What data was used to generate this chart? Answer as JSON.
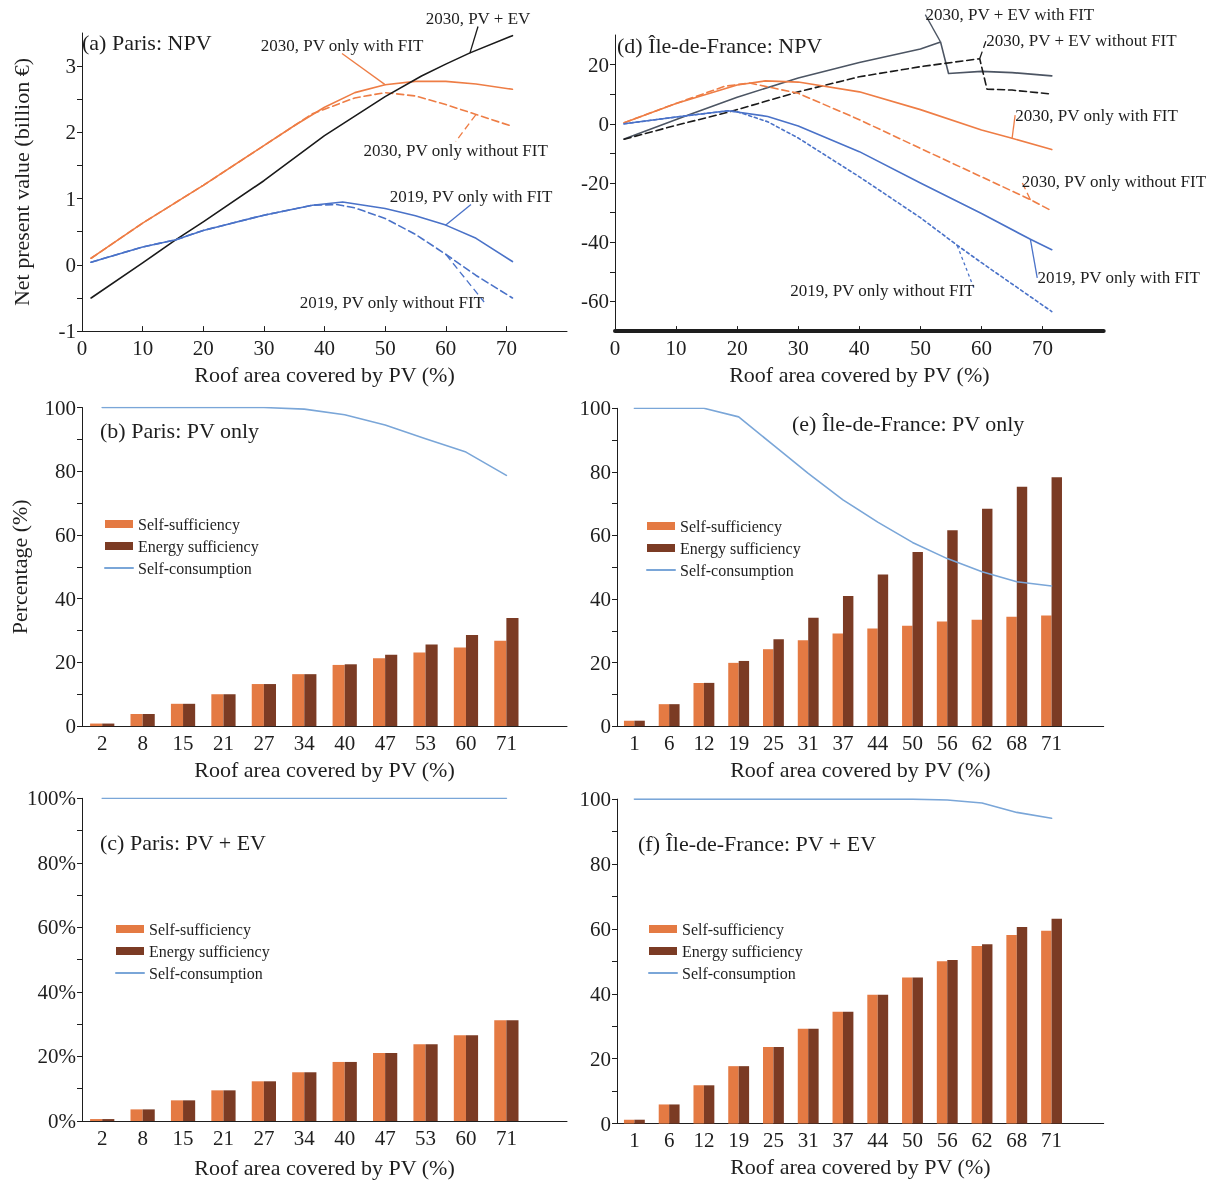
{
  "chart_data": [
    {
      "type": "line",
      "title": "(a) Paris: NPV",
      "xlabel": "Roof area covered by PV (%)",
      "ylabel": "Net present value (billion €)",
      "xlim": [
        0,
        80
      ],
      "xticks": [
        0,
        10,
        20,
        30,
        40,
        50,
        60,
        70
      ],
      "ylim": [
        -1,
        3.5
      ],
      "yticks": [
        -1,
        {
          "value": -0.5,
          "label": null
        },
        0,
        {
          "value": 0.5,
          "label": null
        },
        1,
        {
          "value": 1.5,
          "label": null
        },
        2,
        {
          "value": 2.5,
          "label": null
        },
        3
      ],
      "series": [
        {
          "name": "2030, PV only with FIT",
          "color": "#ee7d45",
          "x": [
            1.5,
            10,
            20,
            30,
            35,
            40,
            45,
            50,
            55,
            60,
            65,
            71
          ],
          "values": [
            0.1,
            0.63,
            1.2,
            1.8,
            2.1,
            2.38,
            2.6,
            2.72,
            2.77,
            2.77,
            2.73,
            2.65
          ]
        },
        {
          "name": "2030, PV only without FIT",
          "color": "#ee7d45",
          "line_style": "dashed",
          "x": [
            1.5,
            10,
            20,
            30,
            35,
            38,
            40,
            45,
            50,
            55,
            60,
            65,
            71
          ],
          "values": [
            0.1,
            0.63,
            1.2,
            1.8,
            2.1,
            2.28,
            2.35,
            2.52,
            2.6,
            2.55,
            2.42,
            2.27,
            2.09
          ]
        },
        {
          "name": "2030, PV + EV",
          "color": "#1a1a1a",
          "x": [
            1.5,
            10,
            15.5,
            20,
            30,
            40,
            50,
            56,
            60,
            64,
            71
          ],
          "values": [
            -0.5,
            0.03,
            0.38,
            0.65,
            1.27,
            1.95,
            2.54,
            2.85,
            3.03,
            3.2,
            3.46
          ]
        },
        {
          "name": "2019, PV only with FIT",
          "color": "#4a72c8",
          "x": [
            1.5,
            10,
            15.5,
            20,
            30,
            38,
            43,
            50,
            55,
            60,
            65,
            71
          ],
          "values": [
            0.04,
            0.27,
            0.38,
            0.52,
            0.75,
            0.9,
            0.95,
            0.85,
            0.74,
            0.6,
            0.4,
            0.05
          ]
        },
        {
          "name": "2019, PV only without FIT",
          "color": "#4a72c8",
          "line_style": "dashed",
          "x": [
            1.5,
            10,
            15.5,
            20,
            30,
            38,
            42,
            45,
            50,
            55,
            60,
            65,
            71
          ],
          "values": [
            0.04,
            0.27,
            0.38,
            0.52,
            0.75,
            0.9,
            0.91,
            0.86,
            0.7,
            0.46,
            0.16,
            -0.16,
            -0.5
          ]
        }
      ]
    },
    {
      "type": "line",
      "title": "(d) Île-de-France: NPV",
      "xlabel": "Roof area covered by PV (%)",
      "xlim": [
        0,
        80
      ],
      "xticks": [
        0,
        10,
        20,
        30,
        40,
        50,
        60,
        70
      ],
      "ylim": [
        -70,
        30
      ],
      "yticks": [
        -60,
        {
          "value": -50,
          "label": null
        },
        -40,
        {
          "value": -30,
          "label": null
        },
        -20,
        {
          "value": -10,
          "label": null
        },
        0,
        {
          "value": 10,
          "label": null
        },
        20
      ],
      "series": [
        {
          "name": "2030, PV + EV with FIT",
          "color": "#4c5563",
          "x": [
            1.5,
            12,
            20,
            30,
            40,
            50,
            53.3,
            54.6,
            60,
            65,
            71.5
          ],
          "values": [
            -5.1,
            3,
            9,
            15.5,
            20.7,
            25.3,
            27.6,
            17,
            17.7,
            17.3,
            16.2
          ]
        },
        {
          "name": "2030, PV + EV without FIT",
          "color": "#1a1a1a",
          "line_style": "dashed",
          "x": [
            1.5,
            10,
            18.5,
            30,
            40,
            50,
            59.7,
            60.9,
            65,
            71.2
          ],
          "values": [
            -5.2,
            -0.5,
            3.9,
            10.8,
            15.9,
            19.3,
            22,
            11.7,
            11.4,
            10.1
          ]
        },
        {
          "name": "2030, PV only with FIT",
          "color": "#ee7d45",
          "x": [
            1.5,
            10,
            20,
            24.6,
            30,
            40,
            50,
            60,
            65,
            71.5
          ],
          "values": [
            0.4,
            6.9,
            13.1,
            14.5,
            14.1,
            10.8,
            4.8,
            -2.1,
            -4.9,
            -8.7
          ]
        },
        {
          "name": "2030, PV only without FIT",
          "color": "#ee7d45",
          "line_style": "dashed",
          "x": [
            1.5,
            10,
            18,
            22,
            30,
            40,
            50,
            60,
            68,
            71.5
          ],
          "values": [
            0.4,
            6.9,
            12.7,
            13.8,
            10.3,
            1.4,
            -8.3,
            -17.9,
            -25.6,
            -29.4
          ]
        },
        {
          "name": "2019, PV only with FIT",
          "color": "#4a72c8",
          "x": [
            1.5,
            10,
            18.5,
            25,
            30,
            40,
            50,
            60,
            68,
            71.5
          ],
          "values": [
            0,
            2.3,
            4.4,
            2.5,
            -0.7,
            -9.4,
            -20,
            -30.3,
            -39,
            -42.5
          ]
        },
        {
          "name": "2019, PV only without FIT",
          "color": "#4a72c8",
          "line_style": "dotted",
          "x": [
            1.5,
            10,
            18.5,
            20,
            25,
            30,
            40,
            50,
            56,
            60,
            71.5
          ],
          "values": [
            0,
            2.3,
            4.4,
            4.1,
            0.7,
            -4.8,
            -17.9,
            -31.7,
            -41,
            -46.9,
            -63.4
          ]
        }
      ]
    },
    {
      "type": "bar",
      "title": "(b) Paris: PV only",
      "xlabel": "Roof area covered by PV (%)",
      "ylabel": "Percentage (%)",
      "categories": [
        "2",
        "8",
        "15",
        "21",
        "27",
        "34",
        "40",
        "47",
        "53",
        "60",
        "71",
        null
      ],
      "ylim": [
        0,
        100
      ],
      "yticks": [
        0,
        {
          "value": 10,
          "label": null
        },
        20,
        {
          "value": 30,
          "label": null
        },
        40,
        {
          "value": 50,
          "label": null
        },
        60,
        {
          "value": 70,
          "label": null
        },
        80,
        {
          "value": 90,
          "label": null
        },
        100
      ],
      "legend": "left",
      "series": [
        {
          "name": "Self-sufficiency",
          "color": "#e47a43",
          "values": [
            0.8,
            3.8,
            7.0,
            10.0,
            13.2,
            16.3,
            19.2,
            21.3,
            23.1,
            24.7,
            26.8,
            null
          ]
        },
        {
          "name": "Energy sufficiency",
          "color": "#7b3b24",
          "values": [
            0.8,
            3.8,
            7.0,
            10.0,
            13.2,
            16.3,
            19.4,
            22.4,
            25.6,
            28.6,
            33.9,
            null
          ]
        },
        {
          "name": "Self-consumption",
          "type": "line",
          "color": "#7aa6d8",
          "values": [
            100,
            100,
            100,
            100,
            100,
            99.5,
            97.7,
            94.5,
            90.2,
            86.0,
            78.7,
            null
          ]
        }
      ]
    },
    {
      "type": "bar",
      "title": "(e) Île-de-France: PV only",
      "xlabel": "Roof area covered by PV (%)",
      "categories": [
        "1",
        "6",
        "12",
        "19",
        "25",
        "31",
        "37",
        "44",
        "50",
        "56",
        "62",
        "68",
        "71",
        null
      ],
      "ylim": [
        0,
        100
      ],
      "yticks": [
        0,
        {
          "value": 10,
          "label": null
        },
        20,
        {
          "value": 30,
          "label": null
        },
        40,
        {
          "value": 50,
          "label": null
        },
        60,
        {
          "value": 70,
          "label": null
        },
        80,
        {
          "value": 90,
          "label": null
        },
        100
      ],
      "legend": "left",
      "series": [
        {
          "name": "Self-sufficiency",
          "color": "#e47a43",
          "values": [
            1.7,
            6.9,
            13.6,
            19.9,
            24.2,
            27.0,
            29.1,
            30.7,
            31.6,
            32.9,
            33.5,
            34.4,
            34.8,
            null
          ]
        },
        {
          "name": "Energy sufficiency",
          "color": "#7b3b24",
          "values": [
            1.7,
            6.9,
            13.6,
            20.5,
            27.3,
            34.1,
            40.9,
            47.7,
            54.8,
            61.6,
            68.4,
            75.3,
            78.3,
            null
          ]
        },
        {
          "name": "Self-consumption",
          "type": "line",
          "color": "#7aa6d8",
          "values": [
            100,
            100,
            100,
            97.3,
            88.4,
            79.5,
            71.2,
            64.2,
            57.8,
            52.7,
            48.6,
            45.4,
            44.1,
            null
          ]
        }
      ]
    },
    {
      "type": "bar",
      "title": "(c) Paris: PV + EV",
      "xlabel": "Roof area covered by PV (%)",
      "categories": [
        "2",
        "8",
        "15",
        "21",
        "27",
        "34",
        "40",
        "47",
        "53",
        "60",
        "71",
        null
      ],
      "ylim": [
        0,
        100
      ],
      "yticks": [
        {
          "value": 0,
          "label": "0%"
        },
        {
          "value": 10,
          "label": null
        },
        {
          "value": 20,
          "label": "20%"
        },
        {
          "value": 30,
          "label": null
        },
        {
          "value": 40,
          "label": "40%"
        },
        {
          "value": 50,
          "label": null
        },
        {
          "value": 60,
          "label": "60%"
        },
        {
          "value": 70,
          "label": null
        },
        {
          "value": 80,
          "label": "80%"
        },
        {
          "value": 90,
          "label": null
        },
        {
          "value": 100,
          "label": "100%"
        }
      ],
      "legend": "left",
      "series": [
        {
          "name": "Self-sufficiency",
          "color": "#e47a43",
          "values": [
            0.6,
            3.6,
            6.4,
            9.5,
            12.3,
            15.1,
            18.3,
            21.1,
            23.8,
            26.6,
            31.2,
            null
          ]
        },
        {
          "name": "Energy sufficiency",
          "color": "#7b3b24",
          "values": [
            0.6,
            3.6,
            6.4,
            9.5,
            12.3,
            15.1,
            18.3,
            21.1,
            23.8,
            26.6,
            31.2,
            null
          ]
        },
        {
          "name": "Self-consumption",
          "type": "line",
          "color": "#7aa6d8",
          "values": [
            100,
            100,
            100,
            100,
            100,
            100,
            100,
            100,
            100,
            100,
            100,
            null
          ]
        }
      ]
    },
    {
      "type": "bar",
      "title": "(f) Île-de-France: PV + EV",
      "xlabel": "Roof area covered by PV (%)",
      "categories": [
        "1",
        "6",
        "12",
        "19",
        "25",
        "31",
        "37",
        "44",
        "50",
        "56",
        "62",
        "68",
        "71",
        null
      ],
      "ylim": [
        0,
        100
      ],
      "yticks": [
        0,
        {
          "value": 10,
          "label": null
        },
        20,
        {
          "value": 30,
          "label": null
        },
        40,
        {
          "value": 50,
          "label": null
        },
        60,
        {
          "value": 70,
          "label": null
        },
        80,
        {
          "value": 90,
          "label": null
        },
        100
      ],
      "legend": "left",
      "series": [
        {
          "name": "Self-sufficiency",
          "color": "#e47a43",
          "values": [
            1.2,
            5.9,
            11.8,
            17.7,
            23.6,
            29.2,
            34.5,
            39.7,
            45.0,
            50.0,
            54.7,
            58.1,
            59.4,
            null
          ]
        },
        {
          "name": "Energy sufficiency",
          "color": "#7b3b24",
          "values": [
            1.2,
            5.9,
            11.8,
            17.7,
            23.6,
            29.2,
            34.5,
            39.7,
            45.0,
            50.4,
            55.3,
            60.6,
            63.1,
            null
          ]
        },
        {
          "name": "Self-consumption",
          "type": "line",
          "color": "#7aa6d8",
          "values": [
            100,
            100,
            100,
            100,
            100,
            100,
            100,
            100,
            100,
            99.7,
            98.8,
            95.9,
            94.1,
            null
          ]
        }
      ]
    }
  ]
}
